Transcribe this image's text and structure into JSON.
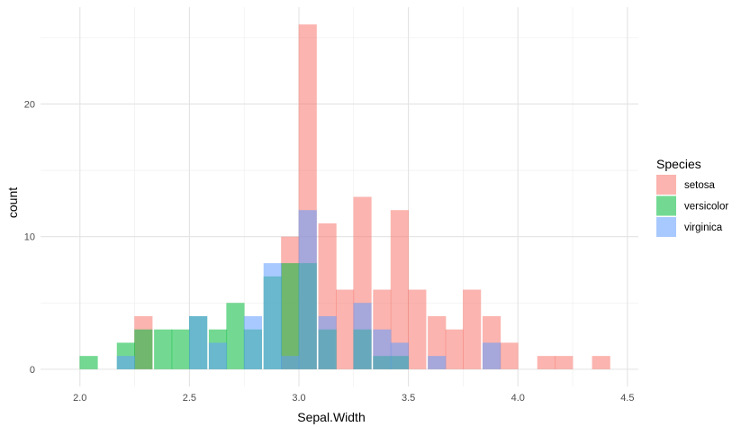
{
  "chart_data": {
    "type": "histogram",
    "title": "",
    "xlabel": "Sepal.Width",
    "ylabel": "count",
    "xlim": [
      1.82,
      4.55
    ],
    "ylim": [
      -1.3,
      27.3
    ],
    "x_ticks": [
      "2.0",
      "2.5",
      "3.0",
      "3.5",
      "4.0",
      "4.5"
    ],
    "y_ticks": [
      "0",
      "10",
      "20"
    ],
    "bin_width": 0.083,
    "position": "identity",
    "opacity": 0.55,
    "grid": true,
    "legend": {
      "title": "Species",
      "position": "right"
    },
    "series": [
      {
        "name": "setosa",
        "color": "#F8766D",
        "bins": [
          {
            "x": 2.29,
            "count": 4
          },
          {
            "x": 2.96,
            "count": 10
          },
          {
            "x": 3.04,
            "count": 26
          },
          {
            "x": 3.13,
            "count": 11
          },
          {
            "x": 3.21,
            "count": 6
          },
          {
            "x": 3.29,
            "count": 13
          },
          {
            "x": 3.38,
            "count": 6
          },
          {
            "x": 3.46,
            "count": 12
          },
          {
            "x": 3.54,
            "count": 6
          },
          {
            "x": 3.63,
            "count": 4
          },
          {
            "x": 3.71,
            "count": 3
          },
          {
            "x": 3.79,
            "count": 6
          },
          {
            "x": 3.88,
            "count": 4
          },
          {
            "x": 3.96,
            "count": 2
          },
          {
            "x": 4.13,
            "count": 1
          },
          {
            "x": 4.21,
            "count": 1
          },
          {
            "x": 4.38,
            "count": 1
          }
        ]
      },
      {
        "name": "versicolor",
        "color": "#00BA38",
        "bins": [
          {
            "x": 2.04,
            "count": 1
          },
          {
            "x": 2.21,
            "count": 2
          },
          {
            "x": 2.29,
            "count": 3
          },
          {
            "x": 2.38,
            "count": 3
          },
          {
            "x": 2.46,
            "count": 3
          },
          {
            "x": 2.54,
            "count": 4
          },
          {
            "x": 2.63,
            "count": 3
          },
          {
            "x": 2.71,
            "count": 5
          },
          {
            "x": 2.79,
            "count": 3
          },
          {
            "x": 2.88,
            "count": 7
          },
          {
            "x": 2.96,
            "count": 8
          },
          {
            "x": 3.04,
            "count": 8
          },
          {
            "x": 3.13,
            "count": 3
          },
          {
            "x": 3.29,
            "count": 3
          },
          {
            "x": 3.38,
            "count": 1
          },
          {
            "x": 3.46,
            "count": 1
          }
        ]
      },
      {
        "name": "virginica",
        "color": "#619CFF",
        "bins": [
          {
            "x": 2.21,
            "count": 1
          },
          {
            "x": 2.54,
            "count": 4
          },
          {
            "x": 2.63,
            "count": 2
          },
          {
            "x": 2.79,
            "count": 4
          },
          {
            "x": 2.88,
            "count": 8
          },
          {
            "x": 2.96,
            "count": 1
          },
          {
            "x": 3.04,
            "count": 12
          },
          {
            "x": 3.13,
            "count": 4
          },
          {
            "x": 3.29,
            "count": 5
          },
          {
            "x": 3.38,
            "count": 3
          },
          {
            "x": 3.46,
            "count": 2
          },
          {
            "x": 3.63,
            "count": 1
          },
          {
            "x": 3.88,
            "count": 2
          }
        ]
      }
    ]
  }
}
